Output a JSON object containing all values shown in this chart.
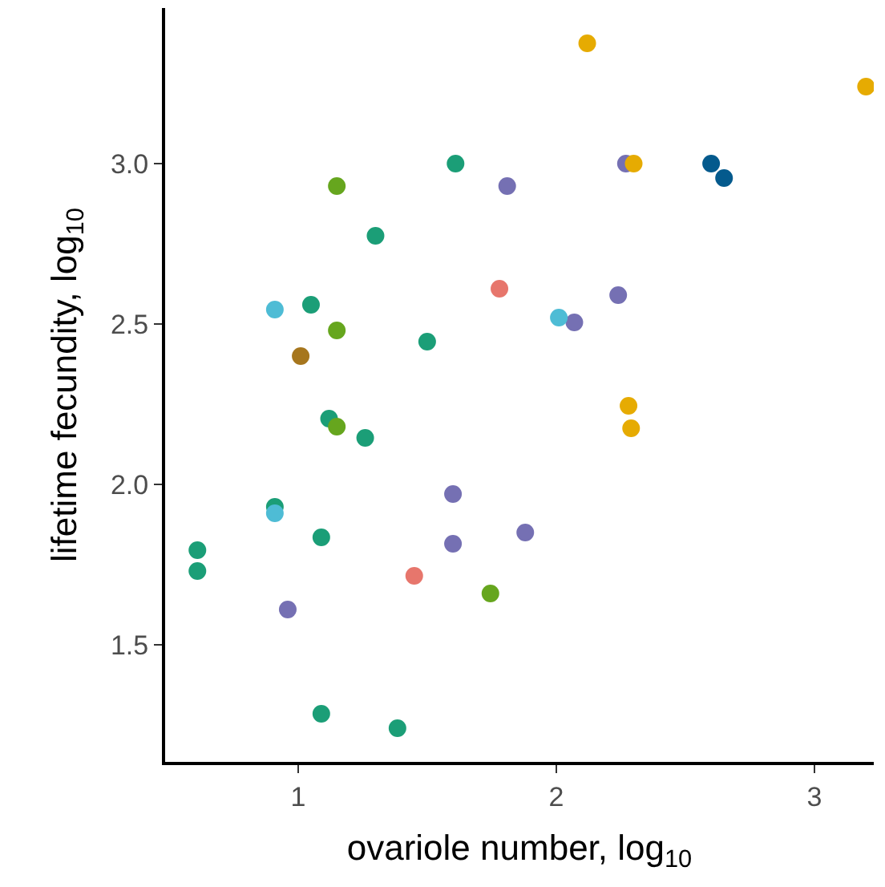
{
  "chart_data": {
    "type": "scatter",
    "xlabel": "ovariole number, log$_{10}$",
    "ylabel": "lifetime fecundity, log$_{10}$",
    "xlim": [
      0.485,
      3.23
    ],
    "ylim": [
      1.135,
      3.485
    ],
    "xticks": [
      1,
      2,
      3
    ],
    "yticks": [
      {
        "value": 1.5,
        "label": "1.5"
      },
      {
        "value": 2.0,
        "label": "2.0"
      },
      {
        "value": 2.5,
        "label": "2.5"
      },
      {
        "value": 3.0,
        "label": "3.0"
      }
    ],
    "marker": "circle",
    "series": [
      {
        "color": "#1b9e77",
        "x": [
          1.61,
          1.3,
          1.05,
          1.5,
          1.12,
          1.26,
          0.91,
          1.09,
          0.61,
          0.61,
          1.09,
          1.385
        ],
        "values": [
          3.0,
          2.775,
          2.56,
          2.445,
          2.205,
          2.145,
          1.93,
          1.835,
          1.795,
          1.73,
          1.285,
          1.24
        ]
      },
      {
        "color": "#66a61e",
        "x": [
          1.15,
          1.15,
          1.15,
          1.745
        ],
        "values": [
          2.93,
          2.48,
          2.18,
          1.66
        ]
      },
      {
        "color": "#7570b3",
        "x": [
          1.81,
          2.27,
          2.24,
          2.07,
          1.6,
          1.6,
          1.88,
          0.96
        ],
        "values": [
          2.93,
          3.0,
          2.59,
          2.505,
          1.97,
          1.815,
          1.85,
          1.61
        ]
      },
      {
        "color": "#e6ab02",
        "x": [
          2.12,
          3.2,
          2.3,
          2.28,
          2.29
        ],
        "values": [
          3.375,
          3.24,
          3.0,
          2.245,
          2.175
        ]
      },
      {
        "color": "#045a8d",
        "x": [
          2.6,
          2.65
        ],
        "values": [
          3.0,
          2.955
        ]
      },
      {
        "color": "#4ebcd5",
        "x": [
          0.91,
          2.01,
          0.91
        ],
        "values": [
          2.545,
          2.52,
          1.91
        ]
      },
      {
        "color": "#e7766c",
        "x": [
          1.78,
          1.45
        ],
        "values": [
          2.61,
          1.715
        ]
      },
      {
        "color": "#a6761d",
        "x": [
          1.01
        ],
        "values": [
          2.4
        ]
      }
    ]
  }
}
